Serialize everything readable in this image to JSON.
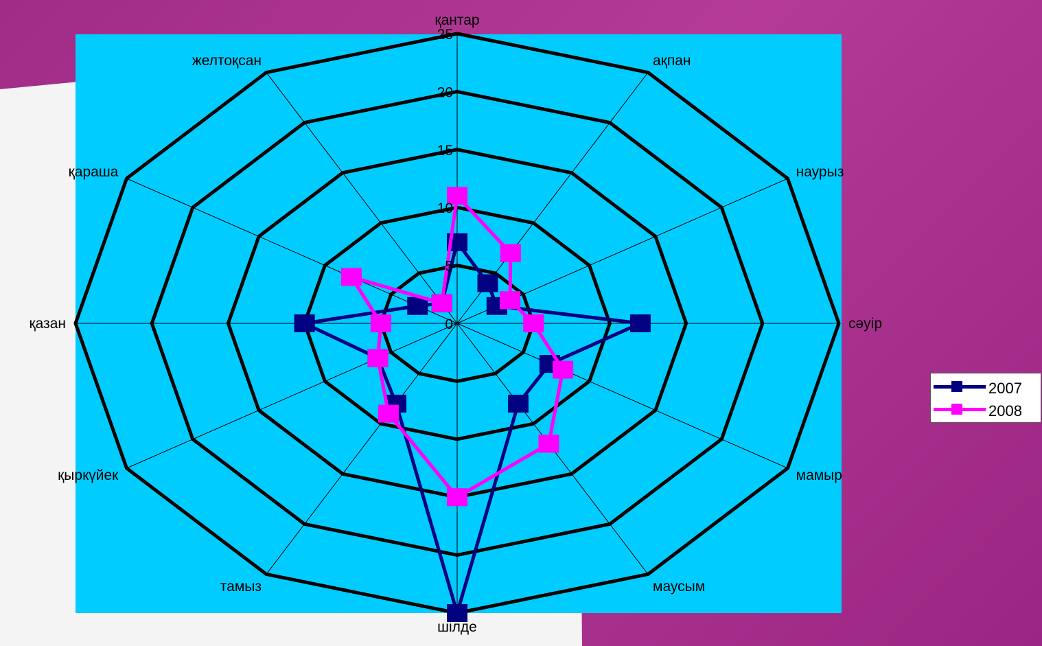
{
  "colors": {
    "background": "#a02c88",
    "paper": "#f4f4f4",
    "plot_area": "#00ccff",
    "grid": "#000000",
    "series_2007": "#000080",
    "series_2008": "#ff00ff"
  },
  "chart_data": {
    "type": "radar",
    "categories": [
      "қантар",
      "ақпан",
      "наурыз",
      "сәуір",
      "мамыр",
      "маусым",
      "шілде",
      "тамыз",
      "қыркүйек",
      "қазан",
      "қараша",
      "желтоқсан"
    ],
    "series": [
      {
        "name": "2007",
        "color": "#000080",
        "values": [
          7,
          4,
          3,
          12,
          7,
          8,
          25,
          8,
          6,
          10,
          3,
          2
        ]
      },
      {
        "name": "2008",
        "color": "#ff00ff",
        "values": [
          11,
          7,
          4,
          5,
          8,
          12,
          15,
          9,
          6,
          5,
          8,
          2
        ]
      }
    ],
    "rlim": [
      0,
      25
    ],
    "ticks": [
      "0",
      "5",
      "10",
      "15",
      "20",
      "25"
    ],
    "legend_position": "right",
    "grid": true
  }
}
